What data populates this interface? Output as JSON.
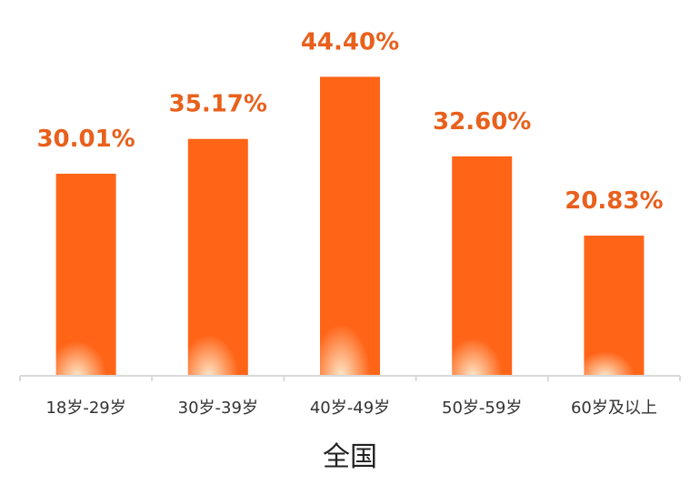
{
  "chart_data": {
    "type": "bar",
    "categories": [
      "18岁-29岁",
      "30岁-39岁",
      "40岁-49岁",
      "50岁-59岁",
      "60岁及以上"
    ],
    "values": [
      30.01,
      35.17,
      44.4,
      32.6,
      20.83
    ],
    "value_labels": [
      "30.01%",
      "35.17%",
      "44.40%",
      "32.60%",
      "20.83%"
    ],
    "xlabel": "全国",
    "ylabel": "",
    "ylim": [
      0,
      100
    ],
    "grid": false,
    "legend": "none"
  },
  "colors": {
    "bar": "#FF6417",
    "bar_glow": "#FFE6C8",
    "label": "#E8601C",
    "axis": "#D9D9D9",
    "tick_text": "#333333"
  }
}
